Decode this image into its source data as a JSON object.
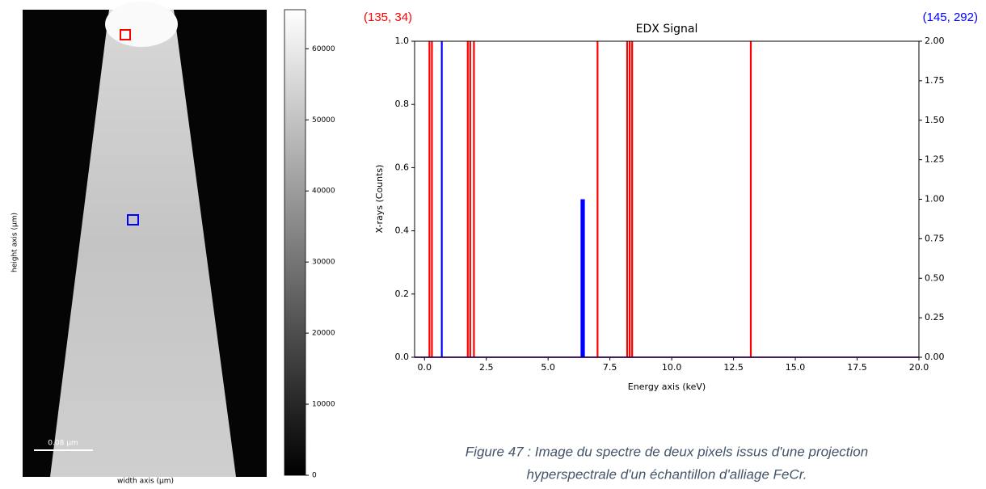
{
  "image": {
    "y_label": "height axis (µm)",
    "x_label": "width axis (µm)",
    "scale_bar": "0.08 µm",
    "colorbar": {
      "lim": [
        0,
        65500
      ],
      "ticks": [
        0,
        10000,
        20000,
        30000,
        40000,
        50000,
        60000
      ]
    }
  },
  "chart_data": {
    "type": "line",
    "title": "EDX Signal",
    "x_label": "Energy axis (keV)",
    "y_label": "X-rays (Counts)",
    "xlim": [
      -0.4,
      20
    ],
    "ylim": [
      0,
      1
    ],
    "y2lim": [
      0,
      2
    ],
    "xticks": [
      {
        "value": 0,
        "label": "0.0"
      },
      {
        "value": 2.5,
        "label": "2.5"
      },
      {
        "value": 5,
        "label": "5.0"
      },
      {
        "value": 7.5,
        "label": "7.5"
      },
      {
        "value": 10,
        "label": "10.0"
      },
      {
        "value": 12.5,
        "label": "12.5"
      },
      {
        "value": 15,
        "label": "15.0"
      },
      {
        "value": 17.5,
        "label": "17.5"
      },
      {
        "value": 20,
        "label": "20.0"
      }
    ],
    "yticks": [
      {
        "value": 0,
        "label": "0.0"
      },
      {
        "value": 0.2,
        "label": "0.2"
      },
      {
        "value": 0.4,
        "label": "0.4"
      },
      {
        "value": 0.6,
        "label": "0.6"
      },
      {
        "value": 0.8,
        "label": "0.8"
      },
      {
        "value": 1,
        "label": "1.0"
      }
    ],
    "y2ticks": [
      {
        "value": 0,
        "label": "0.00"
      },
      {
        "value": 0.25,
        "label": "0.25"
      },
      {
        "value": 0.5,
        "label": "0.50"
      },
      {
        "value": 0.75,
        "label": "0.75"
      },
      {
        "value": 1,
        "label": "1.00"
      },
      {
        "value": 1.25,
        "label": "1.25"
      },
      {
        "value": 1.5,
        "label": "1.50"
      },
      {
        "value": 1.75,
        "label": "1.75"
      },
      {
        "value": 2,
        "label": "2.00"
      }
    ],
    "series": [
      {
        "name": "(135, 34)",
        "color": "#ff0000",
        "x": [
          0.2,
          0.3,
          1.75,
          1.85,
          2.0,
          7.0,
          8.2,
          8.3,
          8.4,
          13.2
        ],
        "values": [
          1,
          1,
          1,
          1,
          1,
          1,
          1,
          1,
          1,
          1
        ]
      },
      {
        "name": "(145, 292)",
        "color": "#0000ff",
        "axis": "y2",
        "x": [
          0.7,
          6.35,
          6.4,
          6.45
        ],
        "values": [
          2,
          1,
          1,
          1
        ]
      }
    ]
  },
  "caption": [
    "Figure 47 : Image du spectre de deux pixels issus d'une projection",
    "hyperspectrale d'un échantillon d'alliage FeCr."
  ]
}
